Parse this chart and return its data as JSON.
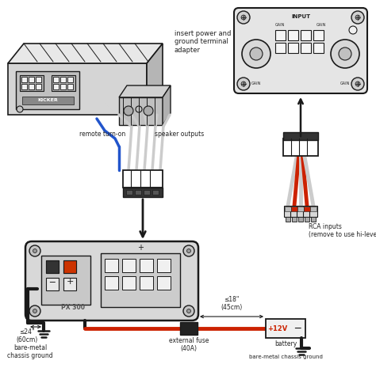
{
  "bg_color": "#ffffff",
  "lc": "#1a1a1a",
  "rc": "#cc2200",
  "bc": "#2255cc",
  "gc": "#999999",
  "lgc": "#cccccc",
  "tc": "#222222",
  "labels": {
    "top_insert": "insert power and\nground terminal\nadapter",
    "remote": "remote turn-on",
    "speaker": "speaker outputs",
    "rca": "RCA inputs\n(remove to use hi-level input)",
    "gnd_left": "bare-metal\nchassis ground",
    "gnd_right": "bare-metal chassis ground",
    "fuse": "external fuse\n(40A)",
    "battery": "battery",
    "dist1": "≤24\"\n(60cm)",
    "dist2": "≤18\"\n(45cm)"
  }
}
